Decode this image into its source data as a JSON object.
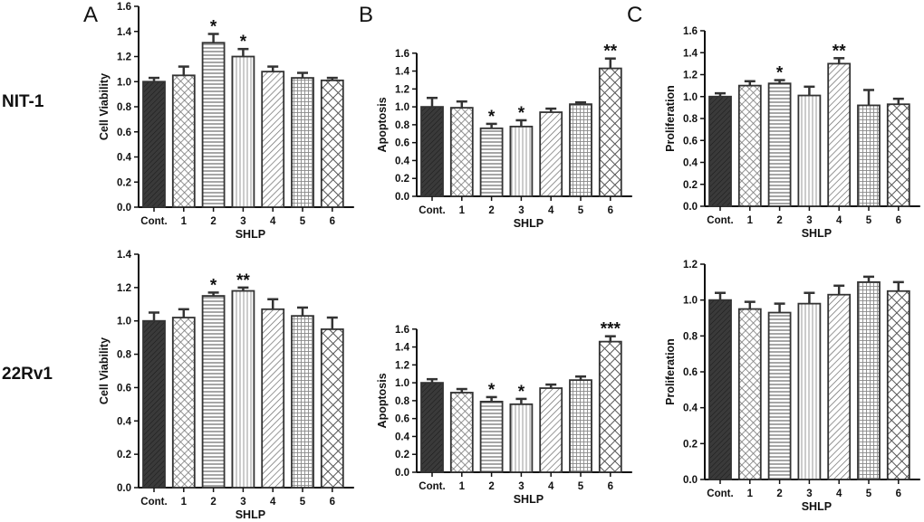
{
  "figure": {
    "panel_letters": [
      "A",
      "B",
      "C"
    ],
    "row_labels": [
      "NIT-1",
      "22Rv1"
    ]
  },
  "colors": {
    "axis": "#111111",
    "bar_edge": "#333333",
    "dark_fill": "#3a3a3a",
    "hatch_line": "#6a6a6a"
  },
  "chart_data": [
    {
      "id": "A_NIT1",
      "type": "bar",
      "title": "",
      "xlabel": "SHLP",
      "ylabel": "Cell Viability",
      "categories": [
        "Cont.",
        "1",
        "2",
        "3",
        "4",
        "5",
        "6"
      ],
      "values": [
        1.0,
        1.05,
        1.31,
        1.2,
        1.08,
        1.03,
        1.01
      ],
      "errors": [
        0.03,
        0.07,
        0.07,
        0.06,
        0.04,
        0.04,
        0.02
      ],
      "significance": [
        "",
        "",
        "*",
        "*",
        "",
        "",
        ""
      ],
      "ylim": [
        0,
        1.6
      ],
      "yticks": [
        "0.0",
        "0.2",
        "0.4",
        "0.6",
        "0.8",
        "1.0",
        "1.2",
        "1.4",
        "1.6"
      ]
    },
    {
      "id": "B_NIT1",
      "type": "bar",
      "title": "",
      "xlabel": "SHLP",
      "ylabel": "Apoptosis",
      "categories": [
        "Cont.",
        "1",
        "2",
        "3",
        "4",
        "5",
        "6"
      ],
      "values": [
        1.0,
        0.99,
        0.76,
        0.78,
        0.94,
        1.03,
        1.43
      ],
      "errors": [
        0.1,
        0.07,
        0.05,
        0.07,
        0.04,
        0.02,
        0.11
      ],
      "significance": [
        "",
        "",
        "*",
        "*",
        "",
        "",
        "**"
      ],
      "ylim": [
        0,
        1.8
      ],
      "yticks": [
        "0.0",
        "0.2",
        "0.4",
        "0.6",
        "0.8",
        "1.0",
        "1.2",
        "1.4",
        "1.6"
      ]
    },
    {
      "id": "C_NIT1",
      "type": "bar",
      "title": "",
      "xlabel": "SHLP",
      "ylabel": "Proliferation",
      "categories": [
        "Cont.",
        "1",
        "2",
        "3",
        "4",
        "5",
        "6"
      ],
      "values": [
        1.0,
        1.1,
        1.12,
        1.01,
        1.3,
        0.92,
        0.93
      ],
      "errors": [
        0.03,
        0.04,
        0.03,
        0.08,
        0.05,
        0.14,
        0.05
      ],
      "significance": [
        "",
        "",
        "*",
        "",
        "**",
        "",
        ""
      ],
      "ylim": [
        0,
        1.6
      ],
      "yticks": [
        "0.0",
        "0.2",
        "0.4",
        "0.6",
        "0.8",
        "1.0",
        "1.2",
        "1.4",
        "1.6"
      ]
    },
    {
      "id": "A_22Rv1",
      "type": "bar",
      "title": "",
      "xlabel": "SHLP",
      "ylabel": "Cell Viability",
      "categories": [
        "Cont.",
        "1",
        "2",
        "3",
        "4",
        "5",
        "6"
      ],
      "values": [
        1.0,
        1.02,
        1.15,
        1.18,
        1.07,
        1.03,
        0.95
      ],
      "errors": [
        0.05,
        0.05,
        0.02,
        0.02,
        0.06,
        0.05,
        0.07
      ],
      "significance": [
        "",
        "",
        "*",
        "**",
        "",
        "",
        ""
      ],
      "ylim": [
        0,
        1.4
      ],
      "yticks": [
        "0.0",
        "0.2",
        "0.4",
        "0.6",
        "0.8",
        "1.0",
        "1.2",
        "1.4"
      ]
    },
    {
      "id": "B_22Rv1",
      "type": "bar",
      "title": "",
      "xlabel": "SHLP",
      "ylabel": "Apoptosis",
      "categories": [
        "Cont.",
        "1",
        "2",
        "3",
        "4",
        "5",
        "6"
      ],
      "values": [
        1.0,
        0.89,
        0.79,
        0.76,
        0.94,
        1.03,
        1.46
      ],
      "errors": [
        0.04,
        0.04,
        0.05,
        0.06,
        0.04,
        0.04,
        0.06
      ],
      "significance": [
        "",
        "",
        "*",
        "*",
        "",
        "",
        "***"
      ],
      "ylim": [
        0,
        1.8
      ],
      "yticks": [
        "0.0",
        "0.2",
        "0.4",
        "0.6",
        "0.8",
        "1.0",
        "1.2",
        "1.4",
        "1.6"
      ]
    },
    {
      "id": "C_22Rv1",
      "type": "bar",
      "title": "",
      "xlabel": "SHLP",
      "ylabel": "Proliferation",
      "categories": [
        "Cont.",
        "1",
        "2",
        "3",
        "4",
        "5",
        "6"
      ],
      "values": [
        1.0,
        0.95,
        0.93,
        0.98,
        1.03,
        1.1,
        1.05
      ],
      "errors": [
        0.04,
        0.04,
        0.05,
        0.06,
        0.05,
        0.03,
        0.05
      ],
      "significance": [
        "",
        "",
        "",
        "",
        "",
        "",
        ""
      ],
      "ylim": [
        0,
        1.2
      ],
      "yticks": [
        "0.0",
        "0.2",
        "0.4",
        "0.6",
        "0.8",
        "1.0",
        "1.2"
      ]
    }
  ]
}
